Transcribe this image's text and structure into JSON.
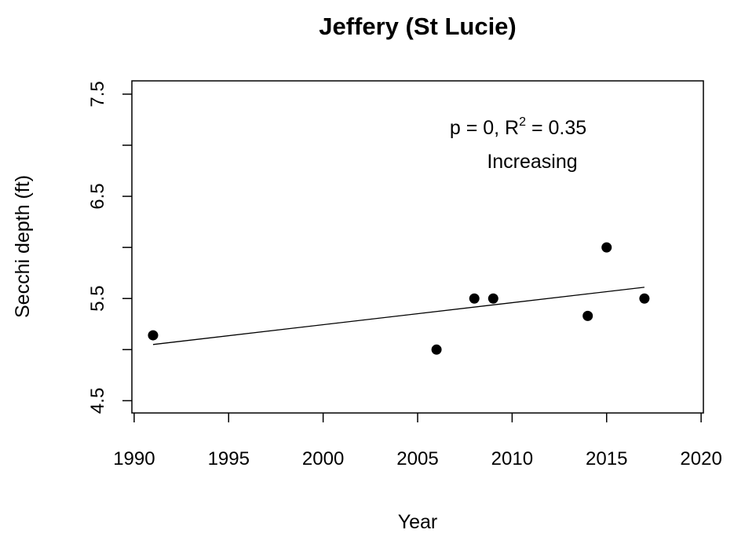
{
  "chart_data": {
    "type": "scatter",
    "title": "Jeffery (St Lucie)",
    "x_label": "Year",
    "y_label": "Secchi depth (ft)",
    "x": [
      1991,
      2006,
      2008,
      2009,
      2014,
      2015,
      2017
    ],
    "values": [
      5.14,
      5.0,
      5.5,
      5.5,
      5.33,
      6.0,
      5.5
    ],
    "color": "#000000",
    "trend": {
      "x": [
        1991,
        2017
      ],
      "values": [
        5.05,
        5.61
      ]
    },
    "stat_text_parts": [
      "p = 0, R",
      "2",
      " = 0.35"
    ],
    "trend_label": "Increasing",
    "xlim": [
      1989.88,
      2020.12
    ],
    "xticks": [
      1990,
      1995,
      2000,
      2005,
      2010,
      2015,
      2020
    ],
    "ylim": [
      4.38,
      7.63
    ],
    "yticks": [
      4.5,
      5.5,
      6.5,
      7.5
    ],
    "yminor_ticks": [
      5,
      6,
      7
    ]
  }
}
